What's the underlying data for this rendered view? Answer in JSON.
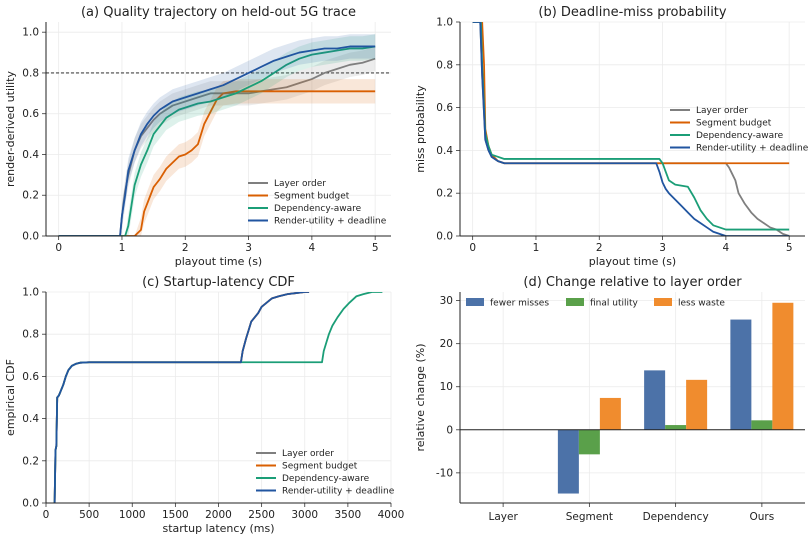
{
  "colors": {
    "layer": "#7f7f7f",
    "segment": "#d95f02",
    "dependency": "#1b9e77",
    "ours": "#2155a0",
    "bar_misses": "#4c72a8",
    "bar_utility": "#5aa04a",
    "bar_waste": "#f08c2e"
  },
  "chart_data": [
    {
      "id": "a",
      "type": "line",
      "title": "(a) Quality trajectory on held-out 5G trace",
      "xlabel": "playout time (s)",
      "ylabel": "render-derived utility",
      "xlim": [
        -0.2,
        5.25
      ],
      "ylim": [
        0,
        1.05
      ],
      "xticks": [
        0,
        1,
        2,
        3,
        4,
        5
      ],
      "yticks": [
        0.0,
        0.2,
        0.4,
        0.6,
        0.8,
        1.0
      ],
      "grid": true,
      "legend_position": "lower-right",
      "reference_line": 0.8,
      "series": [
        {
          "name": "Layer order",
          "color_key": "layer",
          "band": true,
          "x": [
            0,
            0.97,
            1.0,
            1.05,
            1.1,
            1.2,
            1.3,
            1.4,
            1.5,
            1.6,
            1.8,
            2.0,
            2.2,
            2.4,
            2.6,
            2.8,
            3.0,
            3.2,
            3.4,
            3.6,
            3.8,
            4.0,
            4.2,
            4.4,
            4.6,
            4.8,
            5.0
          ],
          "y": [
            0,
            0,
            0.1,
            0.22,
            0.3,
            0.42,
            0.49,
            0.53,
            0.57,
            0.6,
            0.64,
            0.66,
            0.68,
            0.7,
            0.7,
            0.7,
            0.7,
            0.71,
            0.72,
            0.73,
            0.75,
            0.77,
            0.8,
            0.82,
            0.84,
            0.85,
            0.87
          ]
        },
        {
          "name": "Segment budget",
          "color_key": "segment",
          "band": true,
          "x": [
            0,
            1.2,
            1.3,
            1.35,
            1.4,
            1.45,
            1.5,
            1.55,
            1.6,
            1.7,
            1.8,
            1.9,
            2.0,
            2.1,
            2.2,
            2.3,
            2.4,
            2.5,
            2.6,
            2.8,
            3.0,
            3.5,
            4.0,
            4.5,
            5.0
          ],
          "y": [
            0,
            0,
            0.03,
            0.12,
            0.16,
            0.2,
            0.24,
            0.26,
            0.28,
            0.33,
            0.36,
            0.39,
            0.4,
            0.42,
            0.45,
            0.55,
            0.61,
            0.67,
            0.7,
            0.71,
            0.71,
            0.71,
            0.71,
            0.71,
            0.71
          ]
        },
        {
          "name": "Dependency-aware",
          "color_key": "dependency",
          "band": true,
          "x": [
            0,
            1.05,
            1.1,
            1.15,
            1.2,
            1.3,
            1.4,
            1.5,
            1.6,
            1.7,
            1.8,
            1.9,
            2.0,
            2.2,
            2.4,
            2.6,
            2.8,
            3.0,
            3.2,
            3.4,
            3.6,
            3.8,
            4.0,
            4.2,
            4.4,
            4.6,
            4.8,
            5.0
          ],
          "y": [
            0,
            0,
            0.05,
            0.15,
            0.25,
            0.35,
            0.42,
            0.5,
            0.54,
            0.58,
            0.6,
            0.62,
            0.63,
            0.65,
            0.66,
            0.68,
            0.7,
            0.73,
            0.76,
            0.8,
            0.84,
            0.87,
            0.89,
            0.9,
            0.91,
            0.92,
            0.92,
            0.93
          ]
        },
        {
          "name": "Render-utility + deadline",
          "color_key": "ours",
          "band": true,
          "x": [
            0,
            0.97,
            1.0,
            1.05,
            1.1,
            1.2,
            1.3,
            1.4,
            1.5,
            1.6,
            1.7,
            1.8,
            2.0,
            2.2,
            2.4,
            2.6,
            2.8,
            3.0,
            3.2,
            3.4,
            3.6,
            3.8,
            4.0,
            4.2,
            4.4,
            4.6,
            4.8,
            5.0
          ],
          "y": [
            0,
            0,
            0.1,
            0.2,
            0.32,
            0.42,
            0.5,
            0.55,
            0.59,
            0.62,
            0.64,
            0.66,
            0.68,
            0.7,
            0.72,
            0.74,
            0.77,
            0.8,
            0.83,
            0.86,
            0.88,
            0.9,
            0.91,
            0.92,
            0.92,
            0.93,
            0.93,
            0.93
          ]
        }
      ]
    },
    {
      "id": "b",
      "type": "line",
      "title": "(b) Deadline-miss probability",
      "xlabel": "playout time (s)",
      "ylabel": "miss probability",
      "xlim": [
        -0.2,
        5.25
      ],
      "ylim": [
        0,
        1.0
      ],
      "xticks": [
        0,
        1,
        2,
        3,
        4,
        5
      ],
      "yticks": [
        0.0,
        0.2,
        0.4,
        0.6,
        0.8,
        1.0
      ],
      "grid": true,
      "legend_position": "center-right",
      "series": [
        {
          "name": "Layer order",
          "color_key": "layer",
          "x": [
            0,
            0.12,
            0.15,
            0.2,
            0.25,
            0.3,
            0.4,
            0.5,
            1.0,
            2.0,
            3.0,
            4.0,
            4.05,
            4.1,
            4.15,
            4.2,
            4.3,
            4.4,
            4.5,
            4.6,
            4.7,
            4.8,
            4.9,
            5.0
          ],
          "y": [
            1,
            1,
            0.75,
            0.45,
            0.4,
            0.37,
            0.35,
            0.34,
            0.34,
            0.34,
            0.34,
            0.34,
            0.32,
            0.29,
            0.26,
            0.2,
            0.15,
            0.11,
            0.08,
            0.06,
            0.04,
            0.03,
            0.01,
            0.0
          ]
        },
        {
          "name": "Segment budget",
          "color_key": "segment",
          "x": [
            0,
            0.15,
            0.18,
            0.2,
            0.25,
            0.3,
            0.4,
            0.5,
            1.0,
            2.0,
            3.0,
            4.0,
            5.0
          ],
          "y": [
            1,
            1,
            0.8,
            0.5,
            0.42,
            0.38,
            0.35,
            0.34,
            0.34,
            0.34,
            0.34,
            0.34,
            0.34
          ]
        },
        {
          "name": "Dependency-aware",
          "color_key": "dependency",
          "x": [
            0,
            0.13,
            0.15,
            0.2,
            0.25,
            0.3,
            0.4,
            0.5,
            1.0,
            2.0,
            2.95,
            3.0,
            3.05,
            3.1,
            3.2,
            3.4,
            3.5,
            3.6,
            3.7,
            3.8,
            3.9,
            4.0,
            5.0
          ],
          "y": [
            1,
            1,
            0.8,
            0.48,
            0.42,
            0.38,
            0.37,
            0.36,
            0.36,
            0.36,
            0.36,
            0.34,
            0.3,
            0.26,
            0.24,
            0.23,
            0.18,
            0.12,
            0.08,
            0.05,
            0.04,
            0.03,
            0.03
          ]
        },
        {
          "name": "Render-utility + deadline",
          "color_key": "ours",
          "x": [
            0,
            0.12,
            0.15,
            0.2,
            0.25,
            0.3,
            0.4,
            0.5,
            1.0,
            2.0,
            2.9,
            2.95,
            3.0,
            3.05,
            3.1,
            3.2,
            3.3,
            3.4,
            3.5,
            3.6,
            3.7,
            3.8,
            3.9,
            4.0,
            5.0
          ],
          "y": [
            1,
            1,
            0.75,
            0.45,
            0.4,
            0.37,
            0.35,
            0.34,
            0.34,
            0.34,
            0.34,
            0.3,
            0.25,
            0.22,
            0.2,
            0.17,
            0.14,
            0.11,
            0.08,
            0.06,
            0.04,
            0.02,
            0.01,
            0.0,
            0.0
          ]
        }
      ]
    },
    {
      "id": "c",
      "type": "line",
      "title": "(c) Startup-latency CDF",
      "xlabel": "startup latency (ms)",
      "ylabel": "empirical CDF",
      "xlim": [
        0,
        4000
      ],
      "ylim": [
        0,
        1.0
      ],
      "xticks": [
        0,
        500,
        1000,
        1500,
        2000,
        2500,
        3000,
        3500,
        4000
      ],
      "yticks": [
        0.0,
        0.2,
        0.4,
        0.6,
        0.8,
        1.0
      ],
      "grid": true,
      "legend_position": "lower-right",
      "series": [
        {
          "name": "Layer order",
          "color_key": "layer",
          "x": [
            100,
            110,
            120,
            130,
            150,
            170,
            200,
            230,
            260,
            300,
            350,
            400,
            500,
            1000,
            2000,
            2260,
            2280,
            2300,
            2320,
            2350,
            2380,
            2420,
            2460,
            2500,
            2560,
            2620,
            2700,
            2800,
            2900,
            3000,
            3050
          ],
          "y": [
            0,
            0.25,
            0.27,
            0.5,
            0.51,
            0.53,
            0.56,
            0.6,
            0.63,
            0.65,
            0.66,
            0.665,
            0.667,
            0.667,
            0.667,
            0.667,
            0.72,
            0.75,
            0.78,
            0.82,
            0.86,
            0.88,
            0.9,
            0.93,
            0.95,
            0.97,
            0.98,
            0.99,
            0.995,
            1.0,
            1.0
          ]
        },
        {
          "name": "Segment budget",
          "color_key": "segment",
          "x": [
            100,
            110,
            120,
            130,
            150,
            170,
            200,
            230,
            260,
            300,
            350,
            400,
            500,
            1000,
            2000,
            2260,
            2280,
            2300,
            2320,
            2350,
            2380,
            2420,
            2460,
            2500,
            2560,
            2620,
            2700,
            2800,
            2900,
            3000,
            3050
          ],
          "y": [
            0,
            0.25,
            0.27,
            0.5,
            0.51,
            0.53,
            0.56,
            0.6,
            0.63,
            0.65,
            0.66,
            0.665,
            0.667,
            0.667,
            0.667,
            0.667,
            0.72,
            0.75,
            0.78,
            0.82,
            0.86,
            0.88,
            0.9,
            0.93,
            0.95,
            0.97,
            0.98,
            0.99,
            0.995,
            1.0,
            1.0
          ]
        },
        {
          "name": "Dependency-aware",
          "color_key": "dependency",
          "x": [
            100,
            110,
            120,
            130,
            150,
            170,
            200,
            230,
            260,
            300,
            350,
            400,
            500,
            1000,
            2000,
            2500,
            3000,
            3200,
            3220,
            3250,
            3280,
            3320,
            3380,
            3450,
            3520,
            3600,
            3680,
            3780,
            3900
          ],
          "y": [
            0,
            0.25,
            0.27,
            0.5,
            0.51,
            0.53,
            0.56,
            0.6,
            0.63,
            0.65,
            0.66,
            0.665,
            0.667,
            0.667,
            0.667,
            0.667,
            0.667,
            0.667,
            0.72,
            0.76,
            0.8,
            0.84,
            0.88,
            0.92,
            0.95,
            0.98,
            0.99,
            1.0,
            1.0
          ]
        },
        {
          "name": "Render-utility + deadline",
          "color_key": "ours",
          "x": [
            100,
            110,
            120,
            130,
            150,
            170,
            200,
            230,
            260,
            300,
            350,
            400,
            500,
            1000,
            2000,
            2260,
            2280,
            2300,
            2320,
            2350,
            2380,
            2420,
            2460,
            2500,
            2560,
            2620,
            2700,
            2800,
            2900,
            3000,
            3050
          ],
          "y": [
            0,
            0.25,
            0.27,
            0.5,
            0.51,
            0.53,
            0.56,
            0.6,
            0.63,
            0.65,
            0.66,
            0.665,
            0.667,
            0.667,
            0.667,
            0.667,
            0.72,
            0.75,
            0.78,
            0.82,
            0.86,
            0.88,
            0.9,
            0.93,
            0.95,
            0.97,
            0.98,
            0.99,
            0.995,
            1.0,
            1.0
          ]
        }
      ]
    },
    {
      "id": "d",
      "type": "bar",
      "title": "(d) Change relative to layer order",
      "xlabel": "",
      "ylabel": "relative change (%)",
      "ylim": [
        -17,
        32
      ],
      "yticks": [
        -10,
        0,
        10,
        20,
        30
      ],
      "grid": true,
      "legend_position": "top",
      "categories": [
        "Layer",
        "Segment",
        "Dependency",
        "Ours"
      ],
      "series": [
        {
          "name": "fewer misses",
          "color_key": "bar_misses",
          "values": [
            0,
            -14.8,
            13.8,
            25.6
          ]
        },
        {
          "name": "final utility",
          "color_key": "bar_utility",
          "values": [
            0,
            -5.7,
            1.1,
            2.2
          ]
        },
        {
          "name": "less waste",
          "color_key": "bar_waste",
          "values": [
            0,
            7.4,
            11.6,
            29.5
          ]
        }
      ]
    }
  ]
}
